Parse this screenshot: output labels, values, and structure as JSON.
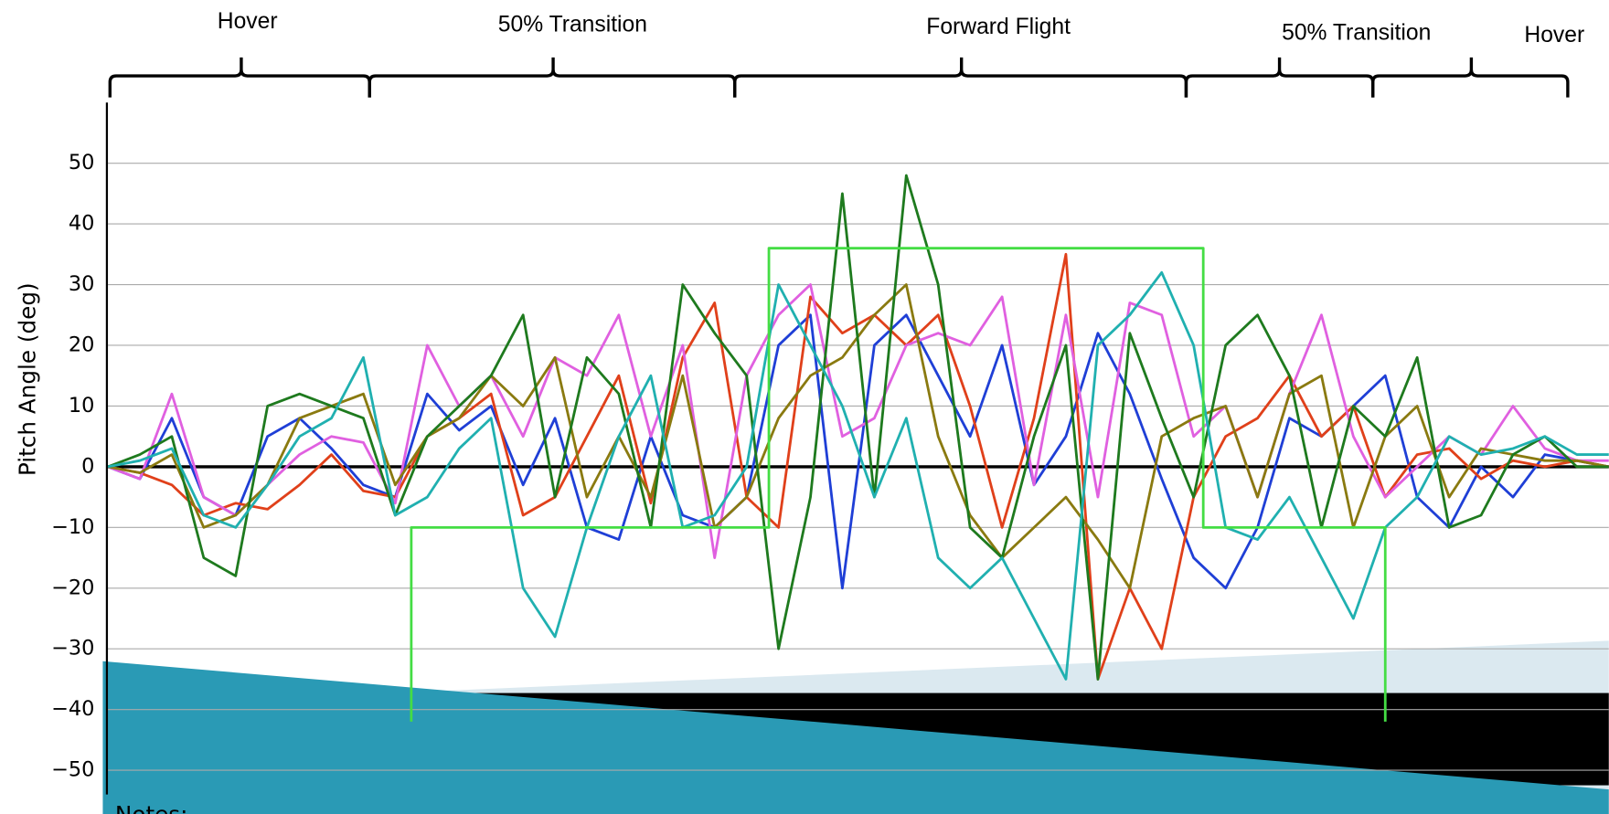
{
  "chart_data": {
    "type": "line",
    "y_label": "Pitch Angle (deg)",
    "annotations": [
      "Hover",
      "50% Transition",
      "Forward Flight",
      "50% Transition",
      "Hover"
    ],
    "notes": "Notes:",
    "ylim": [
      -54,
      60
    ],
    "yticks": [
      50,
      40,
      30,
      20,
      10,
      0,
      {
        "value": -10,
        "label": "−10"
      },
      {
        "value": -20,
        "label": "−20"
      },
      {
        "value": -30,
        "label": "−30"
      },
      {
        "value": -40,
        "label": "−40"
      },
      {
        "value": -50,
        "label": "−50"
      }
    ],
    "grid": true,
    "series": [
      {
        "color": "#1f3fd6",
        "values": [
          0,
          -2,
          8,
          -5,
          -8,
          5,
          8,
          3,
          -3,
          -5,
          12,
          6,
          10,
          -3,
          8,
          -10,
          -12,
          5,
          -8,
          -10,
          -5,
          20,
          25,
          -20,
          20,
          25,
          15,
          5,
          20,
          -3,
          5,
          22,
          12,
          -2,
          -15,
          -20,
          -10,
          8,
          5,
          10,
          15,
          -5,
          -10,
          0,
          -5,
          2,
          1,
          0
        ]
      },
      {
        "color": "#e0401a",
        "values": [
          0,
          -1,
          -3,
          -8,
          -6,
          -7,
          -3,
          2,
          -4,
          -5,
          5,
          8,
          12,
          -8,
          -5,
          5,
          15,
          -6,
          18,
          27,
          -5,
          -10,
          28,
          22,
          25,
          20,
          25,
          10,
          -10,
          8,
          35,
          -35,
          -20,
          -30,
          -5,
          5,
          8,
          15,
          5,
          10,
          -5,
          2,
          3,
          -2,
          1,
          0,
          1,
          0
        ]
      },
      {
        "color": "#e060e0",
        "values": [
          0,
          -2,
          12,
          -5,
          -8,
          -3,
          2,
          5,
          4,
          -6,
          20,
          10,
          15,
          5,
          18,
          15,
          25,
          5,
          20,
          -15,
          15,
          25,
          30,
          5,
          8,
          20,
          22,
          20,
          28,
          -3,
          25,
          -5,
          27,
          25,
          5,
          10,
          -5,
          12,
          25,
          5,
          -5,
          0,
          5,
          2,
          10,
          3,
          1,
          1
        ]
      },
      {
        "color": "#8a7a10",
        "values": [
          0,
          -1,
          2,
          -10,
          -8,
          -3,
          8,
          10,
          12,
          -3,
          5,
          8,
          15,
          10,
          18,
          -5,
          5,
          -5,
          15,
          -10,
          -5,
          8,
          15,
          18,
          25,
          30,
          5,
          -8,
          -15,
          -10,
          -5,
          -12,
          -20,
          5,
          8,
          10,
          -5,
          12,
          15,
          -10,
          5,
          10,
          -5,
          3,
          2,
          1,
          1,
          0
        ]
      },
      {
        "color": "#1e7a1e",
        "values": [
          0,
          2,
          5,
          -15,
          -18,
          10,
          12,
          10,
          8,
          -8,
          5,
          10,
          15,
          25,
          -5,
          18,
          12,
          -10,
          30,
          22,
          15,
          -30,
          -5,
          45,
          -5,
          48,
          30,
          -10,
          -15,
          5,
          20,
          -35,
          22,
          8,
          -5,
          20,
          25,
          15,
          -10,
          10,
          5,
          18,
          -10,
          -8,
          2,
          5,
          0,
          0
        ]
      },
      {
        "color": "#20b0b0",
        "values": [
          0,
          1,
          3,
          -8,
          -10,
          -3,
          5,
          8,
          18,
          -8,
          -5,
          3,
          8,
          -20,
          -28,
          -10,
          5,
          15,
          -10,
          -8,
          0,
          30,
          20,
          10,
          -5,
          8,
          -15,
          -20,
          -15,
          -25,
          -35,
          20,
          25,
          32,
          20,
          -10,
          -12,
          -5,
          -15,
          -25,
          -10,
          -5,
          5,
          2,
          3,
          5,
          2,
          2
        ]
      },
      {
        "color": "#44dd44",
        "x": [
          9.5,
          9.5,
          20.7,
          20.7,
          34.3,
          34.3,
          40,
          40
        ],
        "values": [
          -42,
          -10,
          -10,
          36,
          36,
          -10,
          -10,
          -42
        ]
      }
    ]
  }
}
